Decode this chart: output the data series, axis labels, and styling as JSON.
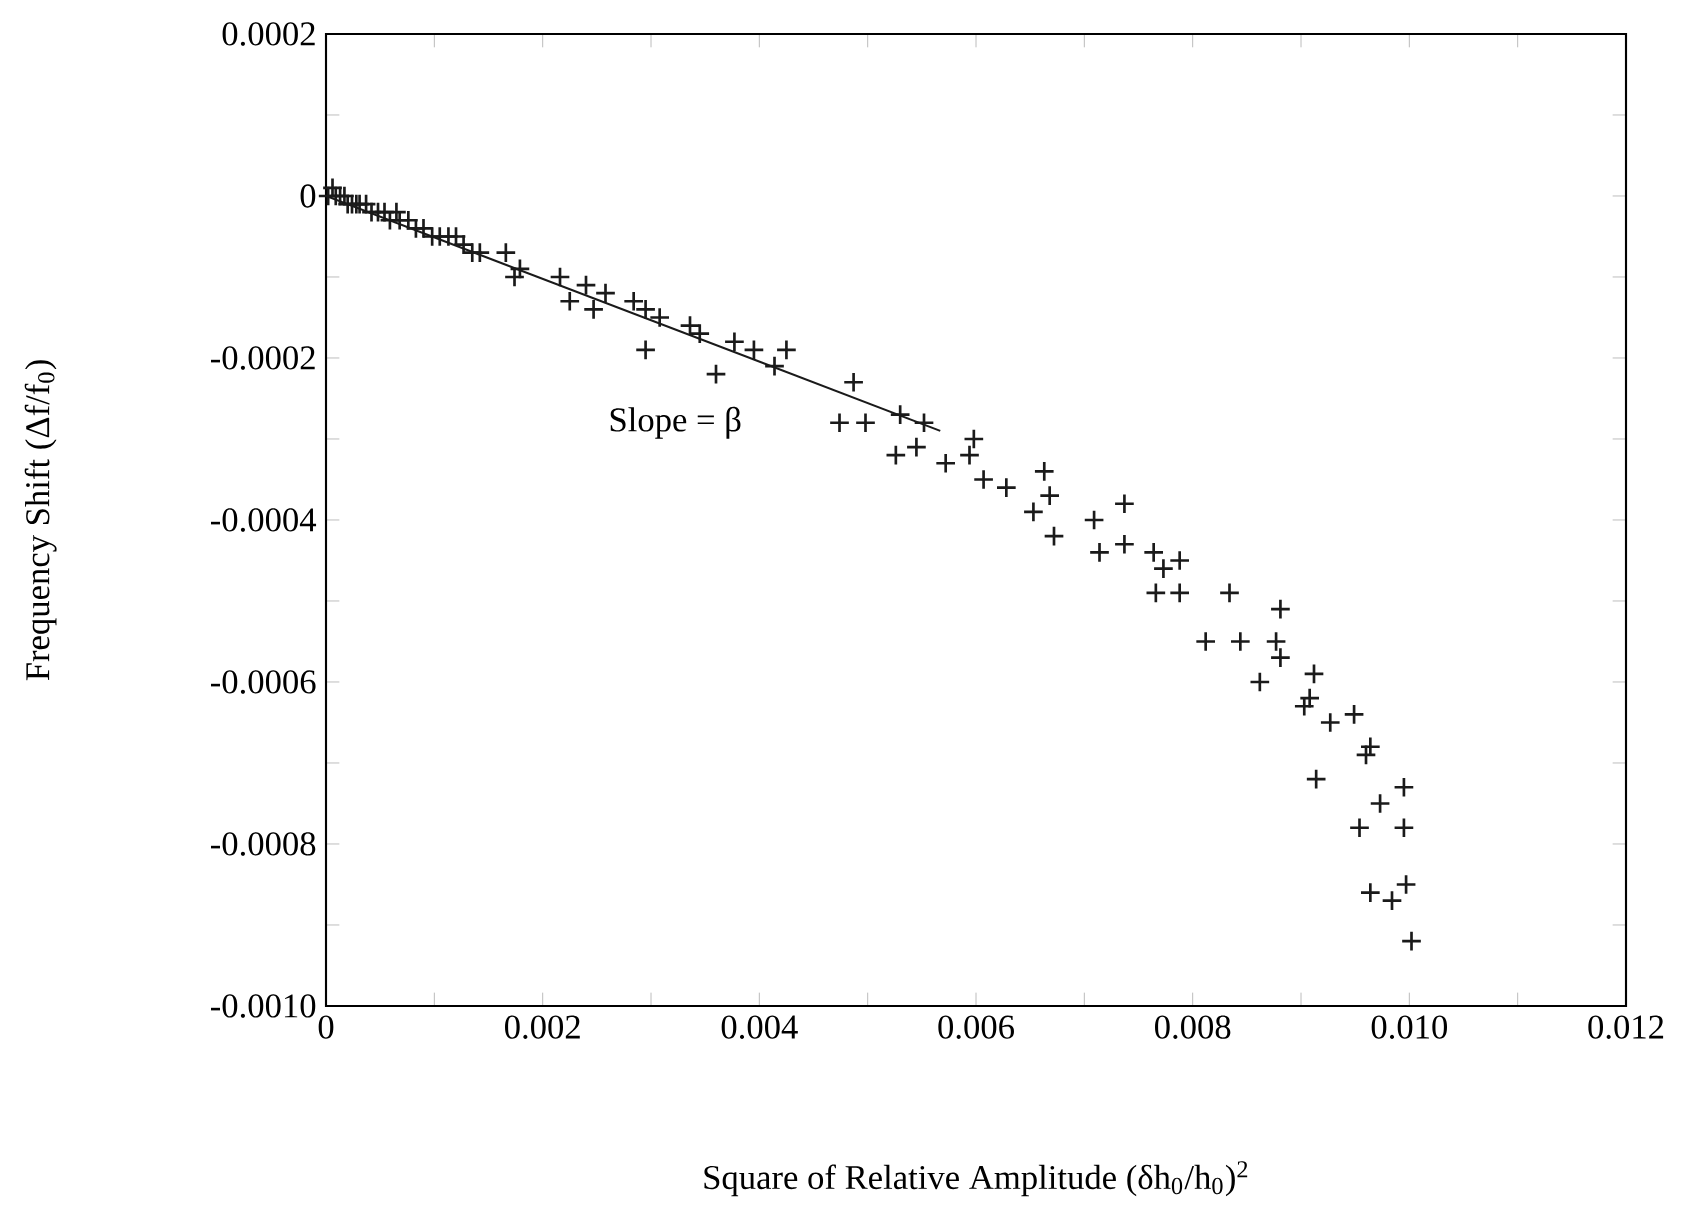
{
  "chart_data": {
    "type": "scatter",
    "xlabel": "Square of Relative Amplitude  (δh$_{0}$/h$_{0}$)$^{2}$",
    "ylabel": "Frequency Shift  (Δf/f$_{0}$)",
    "xlim": [
      0,
      0.012
    ],
    "ylim": [
      -0.001,
      0.0002
    ],
    "xticks": [
      0,
      {
        "value": 0.001,
        "label": null
      },
      0.002,
      {
        "value": 0.003,
        "label": null
      },
      0.004,
      {
        "value": 0.005,
        "label": null
      },
      0.006,
      {
        "value": 0.007,
        "label": null
      },
      0.008,
      {
        "value": 0.009,
        "label": null
      },
      {
        "value": 0.01,
        "label": "0.010"
      },
      {
        "value": 0.011,
        "label": null
      },
      0.012
    ],
    "yticks": [
      {
        "value": -0.001,
        "label": "-0.0010"
      },
      {
        "value": -0.0009,
        "label": null
      },
      -0.0008,
      {
        "value": -0.0007,
        "label": null
      },
      -0.0006,
      {
        "value": -0.0005,
        "label": null
      },
      -0.0004,
      {
        "value": -0.0003,
        "label": null
      },
      -0.0002,
      {
        "value": -0.0001,
        "label": null
      },
      0,
      {
        "value": 0.0001,
        "label": null
      },
      0.0002
    ],
    "annotations": [
      "Slope = β"
    ],
    "series": [
      {
        "marker": "cross",
        "color": "#1a1a1a",
        "x": [
          2e-05,
          6e-05,
          9e-05,
          0.00013,
          0.00017,
          0.0002,
          0.00024,
          0.00028,
          0.00031,
          0.00037,
          0.00042,
          0.00048,
          0.00054,
          0.00059,
          0.00065,
          0.00068,
          0.00076,
          0.00083,
          0.0009,
          0.00098,
          0.00105,
          0.00113,
          0.0012,
          0.00127,
          0.00135,
          0.00142,
          0.00166,
          0.00174,
          0.00179,
          0.00216,
          0.00225,
          0.0024,
          0.00247,
          0.00258,
          0.00284,
          0.00295,
          0.00295,
          0.00308,
          0.00336,
          0.00345,
          0.0036,
          0.00377,
          0.00395,
          0.00414,
          0.00425,
          0.00487,
          0.00474,
          0.00498,
          0.0053,
          0.00552,
          0.00526,
          0.00545,
          0.00572,
          0.00598,
          0.00594,
          0.00607,
          0.00628,
          0.00663,
          0.00668,
          0.00653,
          0.00672,
          0.00709,
          0.00737,
          0.00714,
          0.00737,
          0.00764,
          0.00788,
          0.00773,
          0.00766,
          0.00788,
          0.00834,
          0.00881,
          0.00812,
          0.00844,
          0.00877,
          0.00881,
          0.00862,
          0.00912,
          0.00908,
          0.00903,
          0.00927,
          0.00949,
          0.00964,
          0.0096,
          0.00914,
          0.00995,
          0.00973,
          0.00954,
          0.00995,
          0.00964,
          0.00997,
          0.00984,
          0.01002
        ],
        "values": [
          0,
          1e-05,
          0,
          0,
          0,
          -1e-05,
          -1e-05,
          -1e-05,
          -1e-05,
          -1e-05,
          -2e-05,
          -2e-05,
          -2e-05,
          -3e-05,
          -2e-05,
          -3e-05,
          -3e-05,
          -4e-05,
          -4e-05,
          -5e-05,
          -5e-05,
          -5e-05,
          -5e-05,
          -6e-05,
          -7e-05,
          -7e-05,
          -7e-05,
          -0.0001,
          -9e-05,
          -0.0001,
          -0.00013,
          -0.00011,
          -0.00014,
          -0.00012,
          -0.00013,
          -0.00014,
          -0.00019,
          -0.00015,
          -0.00016,
          -0.00017,
          -0.00022,
          -0.00018,
          -0.00019,
          -0.00021,
          -0.00019,
          -0.00023,
          -0.00028,
          -0.00028,
          -0.00027,
          -0.00028,
          -0.00032,
          -0.00031,
          -0.00033,
          -0.0003,
          -0.00032,
          -0.00035,
          -0.00036,
          -0.00034,
          -0.00037,
          -0.00039,
          -0.00042,
          -0.0004,
          -0.00038,
          -0.00044,
          -0.00043,
          -0.00044,
          -0.00045,
          -0.00046,
          -0.00049,
          -0.00049,
          -0.00049,
          -0.00051,
          -0.00055,
          -0.00055,
          -0.00055,
          -0.00057,
          -0.0006,
          -0.00059,
          -0.00062,
          -0.00063,
          -0.00065,
          -0.00064,
          -0.00068,
          -0.00069,
          -0.00072,
          -0.00073,
          -0.00075,
          -0.00078,
          -0.00078,
          -0.00086,
          -0.00085,
          -0.00087,
          -0.00092
        ]
      },
      {
        "type": "line",
        "marker": "none",
        "line_style": "solid",
        "color": "#1a1a1a",
        "x": [
          0,
          0.00567
        ],
        "values": [
          0,
          -0.00029
        ]
      }
    ]
  }
}
